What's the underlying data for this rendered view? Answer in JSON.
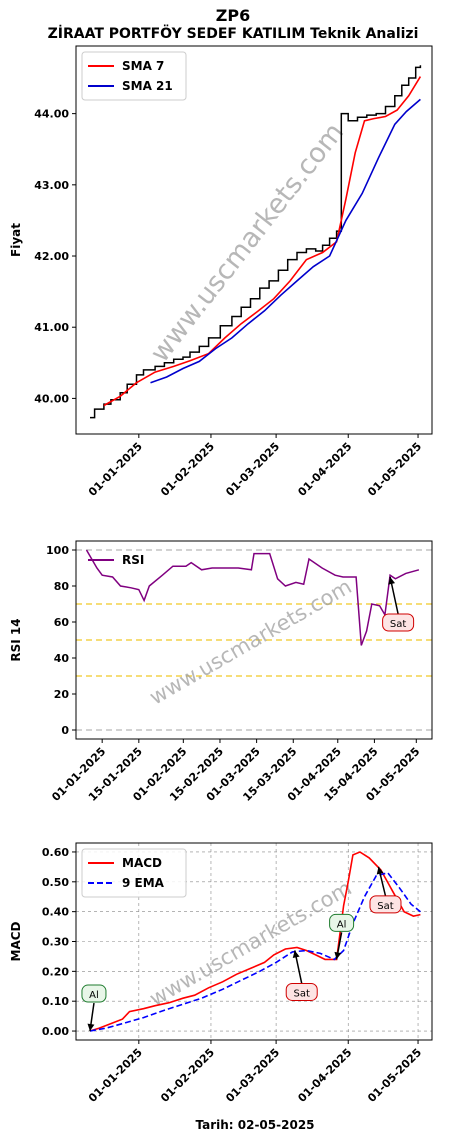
{
  "title": "ZP6",
  "subtitle": "ZİRAAT PORTFÖY SEDEF KATILIM Teknik Analizi",
  "watermark": "www.uscmarkets.com",
  "footer": "Tarih: 02-05-2025",
  "colors": {
    "price": "#000000",
    "sma7": "#ff0000",
    "sma21": "#0000cc",
    "rsi": "#800080",
    "macd": "#ff0000",
    "ema9": "#0000ff",
    "buy_signal": "#1e7b2e",
    "sell_signal": "#d00000",
    "ref_line": "#f0c000",
    "grid": "#888888"
  },
  "chart_data": [
    {
      "type": "line",
      "ylabel": "Fiyat",
      "ylim": [
        39.5,
        44.95
      ],
      "yticks": [
        "40.00",
        "41.00",
        "42.00",
        "43.00",
        "44.00"
      ],
      "xlim": [
        "2024-12-05",
        "2025-05-07"
      ],
      "xticks": [
        "01-01-2025",
        "01-02-2025",
        "01-03-2025",
        "01-04-2025",
        "01-05-2025"
      ],
      "legend": "top-left",
      "grid": false,
      "series": [
        {
          "name": "Fiyat",
          "style": "step",
          "points": [
            [
              "2024-12-11",
              39.73
            ],
            [
              "2024-12-13",
              39.85
            ],
            [
              "2024-12-17",
              39.92
            ],
            [
              "2024-12-20",
              39.98
            ],
            [
              "2024-12-24",
              40.08
            ],
            [
              "2024-12-27",
              40.2
            ],
            [
              "2024-12-31",
              40.33
            ],
            [
              "2025-01-03",
              40.4
            ],
            [
              "2025-01-08",
              40.45
            ],
            [
              "2025-01-12",
              40.5
            ],
            [
              "2025-01-16",
              40.55
            ],
            [
              "2025-01-20",
              40.58
            ],
            [
              "2025-01-23",
              40.65
            ],
            [
              "2025-01-27",
              40.73
            ],
            [
              "2025-01-31",
              40.85
            ],
            [
              "2025-02-05",
              41.02
            ],
            [
              "2025-02-10",
              41.15
            ],
            [
              "2025-02-14",
              41.28
            ],
            [
              "2025-02-18",
              41.4
            ],
            [
              "2025-02-22",
              41.55
            ],
            [
              "2025-02-26",
              41.65
            ],
            [
              "2025-03-02",
              41.8
            ],
            [
              "2025-03-06",
              41.95
            ],
            [
              "2025-03-10",
              42.05
            ],
            [
              "2025-03-14",
              42.1
            ],
            [
              "2025-03-18",
              42.07
            ],
            [
              "2025-03-21",
              42.15
            ],
            [
              "2025-03-24",
              42.25
            ],
            [
              "2025-03-27",
              42.35
            ],
            [
              "2025-03-29",
              44.0
            ],
            [
              "2025-04-01",
              43.9
            ],
            [
              "2025-04-05",
              43.95
            ],
            [
              "2025-04-09",
              43.98
            ],
            [
              "2025-04-13",
              44.0
            ],
            [
              "2025-04-17",
              44.1
            ],
            [
              "2025-04-21",
              44.25
            ],
            [
              "2025-04-24",
              44.4
            ],
            [
              "2025-04-27",
              44.5
            ],
            [
              "2025-04-30",
              44.65
            ],
            [
              "2025-05-02",
              44.68
            ]
          ]
        },
        {
          "name": "SMA 7",
          "style": "line",
          "points": [
            [
              "2024-12-17",
              39.9
            ],
            [
              "2024-12-24",
              40.03
            ],
            [
              "2024-12-31",
              40.22
            ],
            [
              "2025-01-08",
              40.37
            ],
            [
              "2025-01-16",
              40.45
            ],
            [
              "2025-01-23",
              40.53
            ],
            [
              "2025-01-31",
              40.63
            ],
            [
              "2025-02-07",
              40.85
            ],
            [
              "2025-02-14",
              41.05
            ],
            [
              "2025-02-21",
              41.22
            ],
            [
              "2025-02-28",
              41.4
            ],
            [
              "2025-03-07",
              41.65
            ],
            [
              "2025-03-14",
              41.95
            ],
            [
              "2025-03-21",
              42.05
            ],
            [
              "2025-03-27",
              42.2
            ],
            [
              "2025-03-31",
              42.8
            ],
            [
              "2025-04-04",
              43.45
            ],
            [
              "2025-04-08",
              43.9
            ],
            [
              "2025-04-12",
              43.93
            ],
            [
              "2025-04-17",
              43.96
            ],
            [
              "2025-04-22",
              44.05
            ],
            [
              "2025-04-27",
              44.25
            ],
            [
              "2025-05-02",
              44.52
            ]
          ]
        },
        {
          "name": "SMA 21",
          "style": "line",
          "points": [
            [
              "2025-01-06",
              40.22
            ],
            [
              "2025-01-13",
              40.3
            ],
            [
              "2025-01-20",
              40.42
            ],
            [
              "2025-01-27",
              40.52
            ],
            [
              "2025-02-03",
              40.7
            ],
            [
              "2025-02-10",
              40.85
            ],
            [
              "2025-02-17",
              41.05
            ],
            [
              "2025-02-24",
              41.23
            ],
            [
              "2025-03-03",
              41.45
            ],
            [
              "2025-03-10",
              41.65
            ],
            [
              "2025-03-17",
              41.85
            ],
            [
              "2025-03-24",
              42.0
            ],
            [
              "2025-03-31",
              42.5
            ],
            [
              "2025-04-07",
              42.88
            ],
            [
              "2025-04-14",
              43.38
            ],
            [
              "2025-04-21",
              43.85
            ],
            [
              "2025-04-26",
              44.03
            ],
            [
              "2025-05-02",
              44.2
            ]
          ]
        }
      ]
    },
    {
      "type": "line",
      "ylabel": "RSI 14",
      "ylim": [
        -5,
        105
      ],
      "yticks": [
        "0",
        "20",
        "40",
        "60",
        "80",
        "100"
      ],
      "xlim": [
        "2024-12-22",
        "2025-05-07"
      ],
      "xticks": [
        "01-01-2025",
        "15-01-2025",
        "01-02-2025",
        "15-02-2025",
        "01-03-2025",
        "15-03-2025",
        "01-04-2025",
        "15-04-2025",
        "01-05-2025"
      ],
      "reference_lines": [
        0,
        30,
        50,
        70,
        100
      ],
      "legend": "top-left",
      "series": [
        {
          "name": "RSI",
          "points": [
            [
              "2024-12-26",
              100
            ],
            [
              "2024-12-30",
              90
            ],
            [
              "2025-01-01",
              86
            ],
            [
              "2025-01-05",
              85
            ],
            [
              "2025-01-08",
              80
            ],
            [
              "2025-01-12",
              79
            ],
            [
              "2025-01-15",
              78
            ],
            [
              "2025-01-17",
              72
            ],
            [
              "2025-01-19",
              80
            ],
            [
              "2025-01-24",
              86
            ],
            [
              "2025-01-28",
              91
            ],
            [
              "2025-02-02",
              91
            ],
            [
              "2025-02-04",
              93
            ],
            [
              "2025-02-08",
              89
            ],
            [
              "2025-02-12",
              90
            ],
            [
              "2025-02-18",
              90
            ],
            [
              "2025-02-22",
              90
            ],
            [
              "2025-02-27",
              89
            ],
            [
              "2025-02-28",
              98
            ],
            [
              "2025-03-06",
              98
            ],
            [
              "2025-03-09",
              84
            ],
            [
              "2025-03-12",
              80
            ],
            [
              "2025-03-16",
              82
            ],
            [
              "2025-03-19",
              81
            ],
            [
              "2025-03-21",
              95
            ],
            [
              "2025-03-26",
              90
            ],
            [
              "2025-03-31",
              86
            ],
            [
              "2025-04-03",
              85
            ],
            [
              "2025-04-06",
              85
            ],
            [
              "2025-04-08",
              85
            ],
            [
              "2025-04-10",
              47
            ],
            [
              "2025-04-12",
              55
            ],
            [
              "2025-04-14",
              70
            ],
            [
              "2025-04-17",
              69
            ],
            [
              "2025-04-19",
              64
            ],
            [
              "2025-04-21",
              86
            ],
            [
              "2025-04-23",
              84
            ],
            [
              "2025-04-27",
              87
            ],
            [
              "2025-05-02",
              89
            ]
          ]
        }
      ],
      "annotations": [
        {
          "text": "Sat",
          "x": "2025-04-21",
          "y": 85
        }
      ]
    },
    {
      "type": "line",
      "ylabel": "MACD",
      "xlabel": "Tarih: 02-05-2025",
      "ylim": [
        -0.03,
        0.63
      ],
      "yticks": [
        "0.00",
        "0.10",
        "0.20",
        "0.30",
        "0.40",
        "0.50",
        "0.60"
      ],
      "xlim": [
        "2024-12-05",
        "2025-05-07"
      ],
      "xticks": [
        "01-01-2025",
        "01-02-2025",
        "01-03-2025",
        "01-04-2025",
        "01-05-2025"
      ],
      "grid": true,
      "legend": "top-left",
      "series": [
        {
          "name": "MACD",
          "points": [
            [
              "2024-12-11",
              0.0
            ],
            [
              "2024-12-15",
              0.01
            ],
            [
              "2024-12-20",
              0.025
            ],
            [
              "2024-12-25",
              0.04
            ],
            [
              "2024-12-28",
              0.065
            ],
            [
              "2025-01-03",
              0.075
            ],
            [
              "2025-01-08",
              0.085
            ],
            [
              "2025-01-14",
              0.095
            ],
            [
              "2025-01-20",
              0.11
            ],
            [
              "2025-01-25",
              0.12
            ],
            [
              "2025-01-31",
              0.145
            ],
            [
              "2025-02-06",
              0.165
            ],
            [
              "2025-02-12",
              0.19
            ],
            [
              "2025-02-18",
              0.21
            ],
            [
              "2025-02-24",
              0.23
            ],
            [
              "2025-02-28",
              0.255
            ],
            [
              "2025-03-05",
              0.275
            ],
            [
              "2025-03-10",
              0.28
            ],
            [
              "2025-03-14",
              0.27
            ],
            [
              "2025-03-18",
              0.255
            ],
            [
              "2025-03-22",
              0.24
            ],
            [
              "2025-03-27",
              0.24
            ],
            [
              "2025-03-30",
              0.42
            ],
            [
              "2025-04-01",
              0.5
            ],
            [
              "2025-04-03",
              0.59
            ],
            [
              "2025-04-06",
              0.6
            ],
            [
              "2025-04-10",
              0.58
            ],
            [
              "2025-04-15",
              0.54
            ],
            [
              "2025-04-20",
              0.47
            ],
            [
              "2025-04-25",
              0.4
            ],
            [
              "2025-04-29",
              0.385
            ],
            [
              "2025-05-02",
              0.39
            ]
          ]
        },
        {
          "name": "9 EMA",
          "style": "dashed",
          "points": [
            [
              "2024-12-11",
              0.0
            ],
            [
              "2024-12-18",
              0.01
            ],
            [
              "2024-12-25",
              0.025
            ],
            [
              "2025-01-03",
              0.045
            ],
            [
              "2025-01-12",
              0.07
            ],
            [
              "2025-01-20",
              0.09
            ],
            [
              "2025-01-28",
              0.11
            ],
            [
              "2025-02-06",
              0.14
            ],
            [
              "2025-02-14",
              0.17
            ],
            [
              "2025-02-22",
              0.2
            ],
            [
              "2025-03-01",
              0.23
            ],
            [
              "2025-03-08",
              0.265
            ],
            [
              "2025-03-14",
              0.27
            ],
            [
              "2025-03-20",
              0.26
            ],
            [
              "2025-03-26",
              0.24
            ],
            [
              "2025-03-30",
              0.27
            ],
            [
              "2025-04-03",
              0.36
            ],
            [
              "2025-04-08",
              0.45
            ],
            [
              "2025-04-13",
              0.52
            ],
            [
              "2025-04-18",
              0.53
            ],
            [
              "2025-04-23",
              0.48
            ],
            [
              "2025-04-28",
              0.425
            ],
            [
              "2025-05-02",
              0.4
            ]
          ]
        }
      ],
      "annotations": [
        {
          "text": "Al",
          "x": "2024-12-11",
          "y": 0.0
        },
        {
          "text": "Sat",
          "x": "2025-03-09",
          "y": 0.27
        },
        {
          "text": "Al",
          "x": "2025-03-27",
          "y": 0.24
        },
        {
          "text": "Sat",
          "x": "2025-04-14",
          "y": 0.55
        }
      ]
    }
  ]
}
